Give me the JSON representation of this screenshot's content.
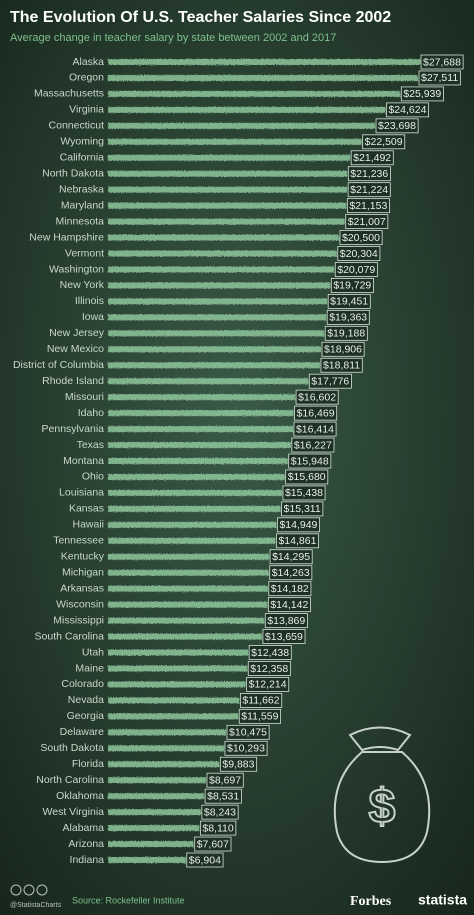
{
  "chart_data": {
    "type": "bar",
    "orientation": "horizontal",
    "title": "The Evolution Of U.S. Teacher Salaries Since 2002",
    "subtitle": "Average change in teacher salary by state between 2002 and 2017",
    "color": "#8fc79c",
    "categories": [
      "Alaska",
      "Oregon",
      "Massachusetts",
      "Virginia",
      "Connecticut",
      "Wyoming",
      "California",
      "North Dakota",
      "Nebraska",
      "Maryland",
      "Minnesota",
      "New Hampshire",
      "Vermont",
      "Washington",
      "New York",
      "Illinois",
      "Iowa",
      "New Jersey",
      "New Mexico",
      "District of Columbia",
      "Rhode Island",
      "Missouri",
      "Idaho",
      "Pennsylvania",
      "Texas",
      "Montana",
      "Ohio",
      "Louisiana",
      "Kansas",
      "Hawaii",
      "Tennessee",
      "Kentucky",
      "Michigan",
      "Arkansas",
      "Wisconsin",
      "Mississippi",
      "South Carolina",
      "Utah",
      "Maine",
      "Colorado",
      "Nevada",
      "Georgia",
      "Delaware",
      "South Dakota",
      "Florida",
      "North Carolina",
      "Oklahoma",
      "West Virginia",
      "Alabama",
      "Arizona",
      "Indiana"
    ],
    "values": [
      27688,
      27511,
      25939,
      24624,
      23698,
      22509,
      21492,
      21236,
      21224,
      21153,
      21007,
      20500,
      20304,
      20079,
      19729,
      19451,
      19363,
      19188,
      18906,
      18811,
      17776,
      16602,
      16469,
      16414,
      16227,
      15948,
      15680,
      15438,
      15311,
      14949,
      14861,
      14295,
      14263,
      14182,
      14142,
      13869,
      13659,
      12438,
      12358,
      12214,
      11662,
      11559,
      10475,
      10293,
      9883,
      8697,
      8531,
      8243,
      8110,
      7607,
      6904
    ],
    "value_labels": [
      "$27,688",
      "$27,511",
      "$25,939",
      "$24,624",
      "$23,698",
      "$22,509",
      "$21,492",
      "$21,236",
      "$21,224",
      "$21,153",
      "$21,007",
      "$20,500",
      "$20,304",
      "$20,079",
      "$19,729",
      "$19,451",
      "$19,363",
      "$19,188",
      "$18,906",
      "$18,811",
      "$17,776",
      "$16,602",
      "$16,469",
      "$16,414",
      "$16,227",
      "$15,948",
      "$15,680",
      "$15,438",
      "$15,311",
      "$14,949",
      "$14,861",
      "$14,295",
      "$14,263",
      "$14,182",
      "$14,142",
      "$13,869",
      "$13,659",
      "$12,438",
      "$12,358",
      "$12,214",
      "$11,662",
      "$11,559",
      "$10,475",
      "$10,293",
      "$9,883",
      "$8,697",
      "$8,531",
      "$8,243",
      "$8,110",
      "$7,607",
      "$6,904"
    ]
  },
  "footer": {
    "handle": "@StatistaCharts",
    "source": "Source: Rockefeller Institute",
    "brand1": "Forbes",
    "brand2": "statista"
  }
}
